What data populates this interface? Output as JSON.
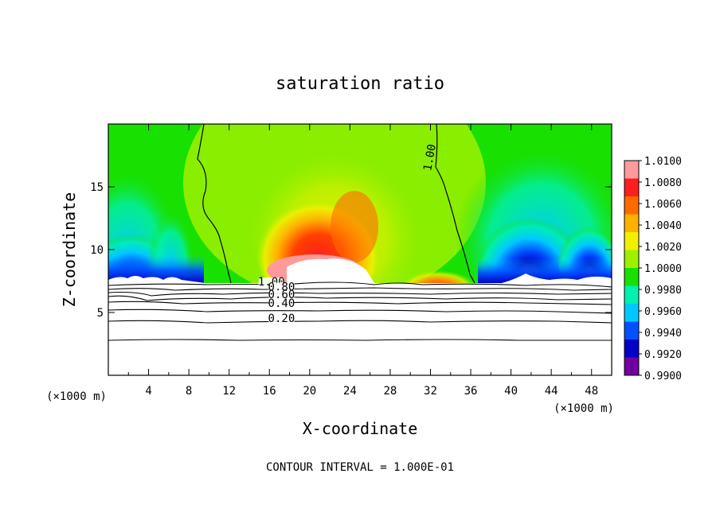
{
  "chart_data": {
    "type": "heatmap",
    "title": "saturation ratio",
    "xlabel": "X-coordinate",
    "ylabel": "Z-coordinate",
    "x_unit": "(×1000 m)",
    "x_unit_right": "(×1000 m)",
    "xlim": [
      0,
      50
    ],
    "ylim": [
      0,
      20
    ],
    "x_ticks": [
      4,
      8,
      12,
      16,
      20,
      24,
      28,
      32,
      36,
      40,
      44,
      48
    ],
    "y_ticks": [
      5,
      10,
      15
    ],
    "footer": "CONTOUR INTERVAL = 1.000E-01",
    "colorbar": {
      "labels": [
        "1.0100",
        "1.0080",
        "1.0060",
        "1.0040",
        "1.0020",
        "1.0000",
        "0.9980",
        "0.9960",
        "0.9940",
        "0.9920",
        "0.9900"
      ],
      "colors": [
        "#ff9a9a",
        "#ff1e1e",
        "#ff6a00",
        "#ffb000",
        "#f0f000",
        "#9ef000",
        "#18e000",
        "#00f0b0",
        "#00c8ff",
        "#0050ff",
        "#0000c8",
        "#7000a0"
      ]
    },
    "contour_labels": [
      {
        "text": "1.00",
        "x": 32.2,
        "z": 17.3
      },
      {
        "text": "1.00",
        "x": 16.2,
        "z": 7.2
      },
      {
        "text": "0.80",
        "x": 17.2,
        "z": 6.8
      },
      {
        "text": "0.60",
        "x": 17.2,
        "z": 6.2
      },
      {
        "text": "0.40",
        "x": 17.2,
        "z": 5.5
      },
      {
        "text": "0.20",
        "x": 17.2,
        "z": 4.3
      }
    ]
  }
}
